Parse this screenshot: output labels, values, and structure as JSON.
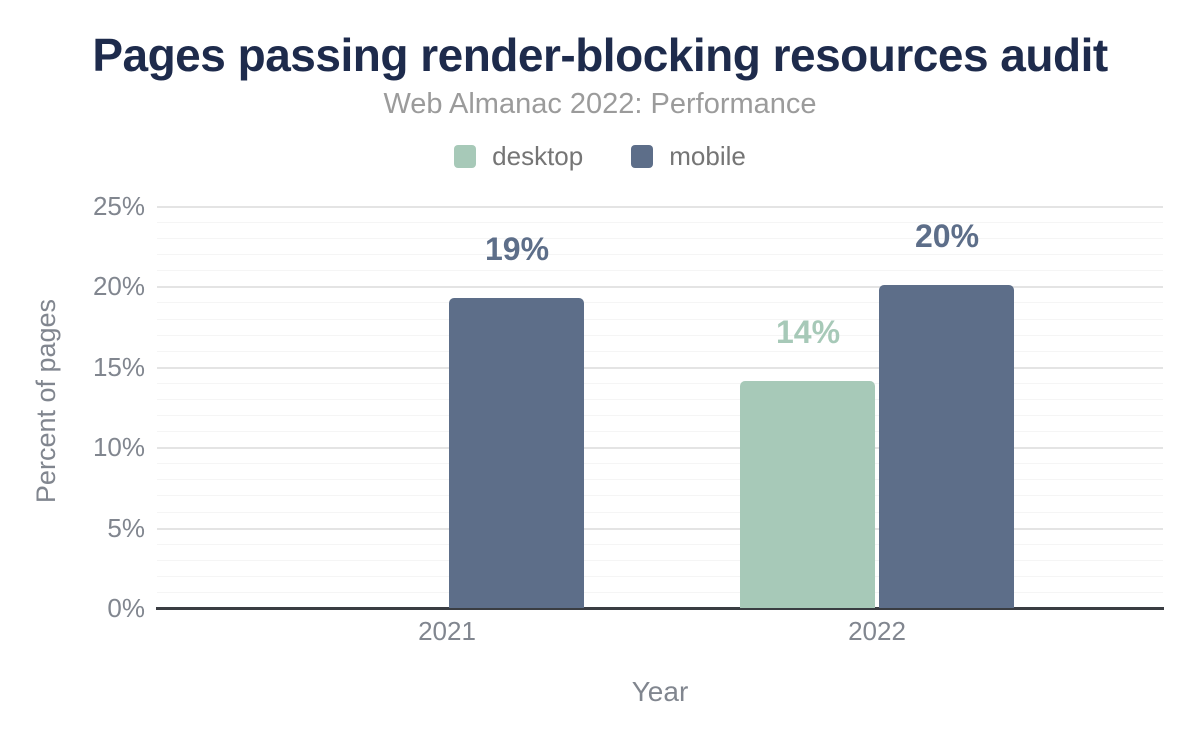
{
  "header": {
    "title": "Pages passing render-blocking resources audit",
    "subtitle": "Web Almanac 2022: Performance",
    "title_color": "#1e2b4c",
    "subtitle_color": "#9b9b9b"
  },
  "chart_data": {
    "type": "bar",
    "title": "Pages passing render-blocking resources audit",
    "subtitle": "Web Almanac 2022: Performance",
    "categories": [
      "2021",
      "2022"
    ],
    "series": [
      {
        "name": "desktop",
        "color": "#a7c9b8",
        "values": [
          null,
          14
        ],
        "bar_heights_pct": [
          null,
          14.1
        ],
        "labels": [
          "",
          "14%"
        ]
      },
      {
        "name": "mobile",
        "color": "#5d6e89",
        "values": [
          19,
          20
        ],
        "bar_heights_pct": [
          19.3,
          20.1
        ],
        "labels": [
          "19%",
          "20%"
        ]
      }
    ],
    "xlabel": "Year",
    "ylabel": "Percent of pages",
    "ylim": [
      0,
      25.8
    ],
    "yticks": [
      "0%",
      "5%",
      "10%",
      "15%",
      "20%",
      "25%"
    ],
    "ytick_values": [
      0,
      5,
      10,
      15,
      20,
      25
    ],
    "grid": "horizontal; minor line every 1%, major line every 5%",
    "grid_minor_color": "#f5f5f5",
    "grid_major_color": "#e4e4e4",
    "axis_line_color": "#3a3d42",
    "tick_label_color": "#81868f",
    "legend_position": "top-center",
    "data_labels_shown": true
  }
}
